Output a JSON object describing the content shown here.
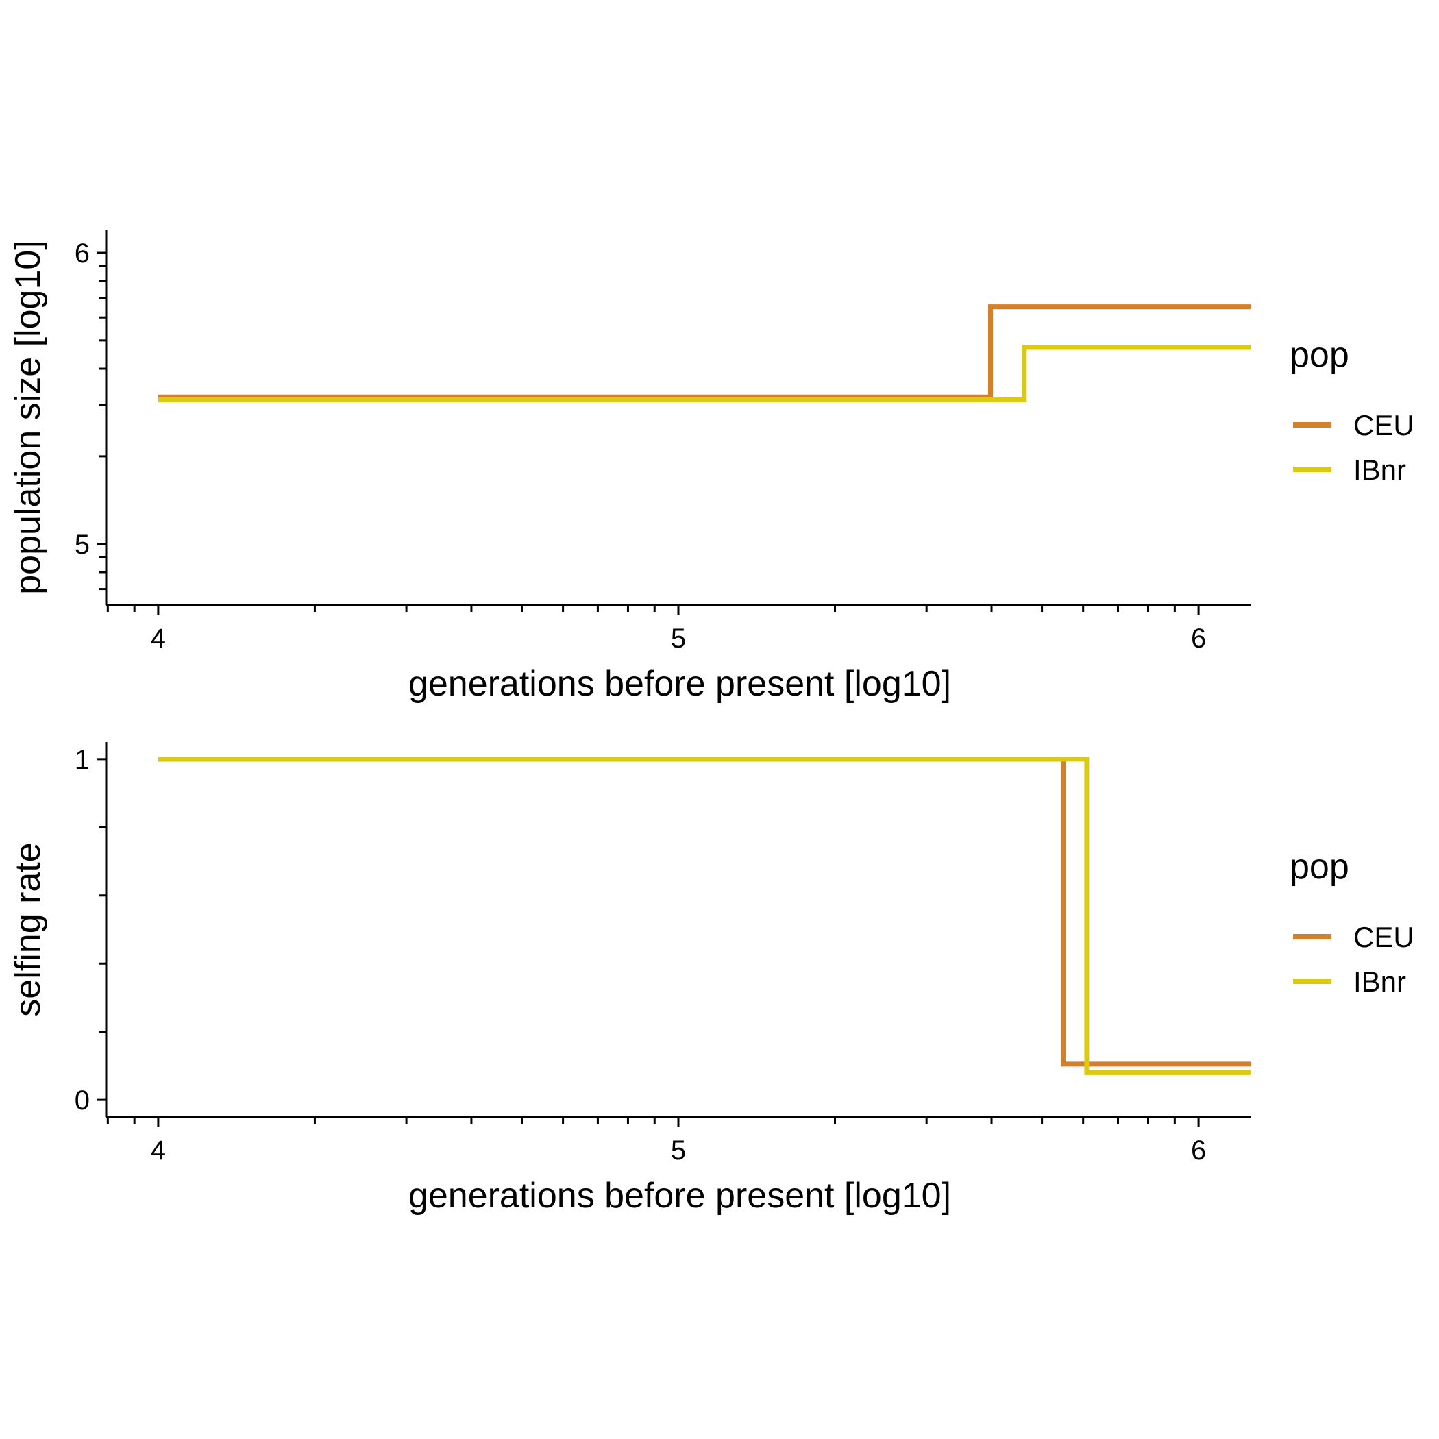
{
  "chart_data": [
    {
      "type": "line",
      "step": true,
      "xlabel": "generations before present [log10]",
      "ylabel": "population size [log10]",
      "xlim": [
        3.9,
        6.1
      ],
      "ylim": [
        4.79,
        6.08
      ],
      "x_ticks": [
        4,
        5,
        6
      ],
      "x_tick_labels": [
        "4",
        "5",
        "6"
      ],
      "y_ticks": [
        5,
        6
      ],
      "y_tick_labels": [
        "5",
        "6"
      ],
      "grid": false,
      "legend": {
        "title": "pop",
        "placement": "right"
      },
      "series": [
        {
          "name": "CEU",
          "color": "#d47f2a",
          "x": [
            4.0,
            5.6,
            5.6,
            6.1
          ],
          "y": [
            5.505,
            5.505,
            5.815,
            5.815
          ]
        },
        {
          "name": "IBnr",
          "color": "#dcc914",
          "x": [
            4.0,
            5.665,
            5.665,
            6.1
          ],
          "y": [
            5.495,
            5.495,
            5.675,
            5.675
          ]
        }
      ]
    },
    {
      "type": "line",
      "step": true,
      "xlabel": "generations before present [log10]",
      "ylabel": "selfing rate",
      "xlim": [
        3.9,
        6.1
      ],
      "ylim": [
        -0.05,
        1.05
      ],
      "x_ticks": [
        4,
        5,
        6
      ],
      "x_tick_labels": [
        "4",
        "5",
        "6"
      ],
      "y_ticks": [
        0,
        1
      ],
      "y_tick_labels": [
        "0",
        "1"
      ],
      "grid": false,
      "legend": {
        "title": "pop",
        "placement": "right"
      },
      "series": [
        {
          "name": "CEU",
          "color": "#d47f2a",
          "x": [
            4.0,
            5.74,
            5.74,
            6.1
          ],
          "y": [
            1.0,
            1.0,
            0.105,
            0.105
          ]
        },
        {
          "name": "IBnr",
          "color": "#dcc914",
          "x": [
            4.0,
            5.785,
            5.785,
            6.1
          ],
          "y": [
            1.0,
            1.0,
            0.08,
            0.08
          ]
        }
      ]
    }
  ]
}
